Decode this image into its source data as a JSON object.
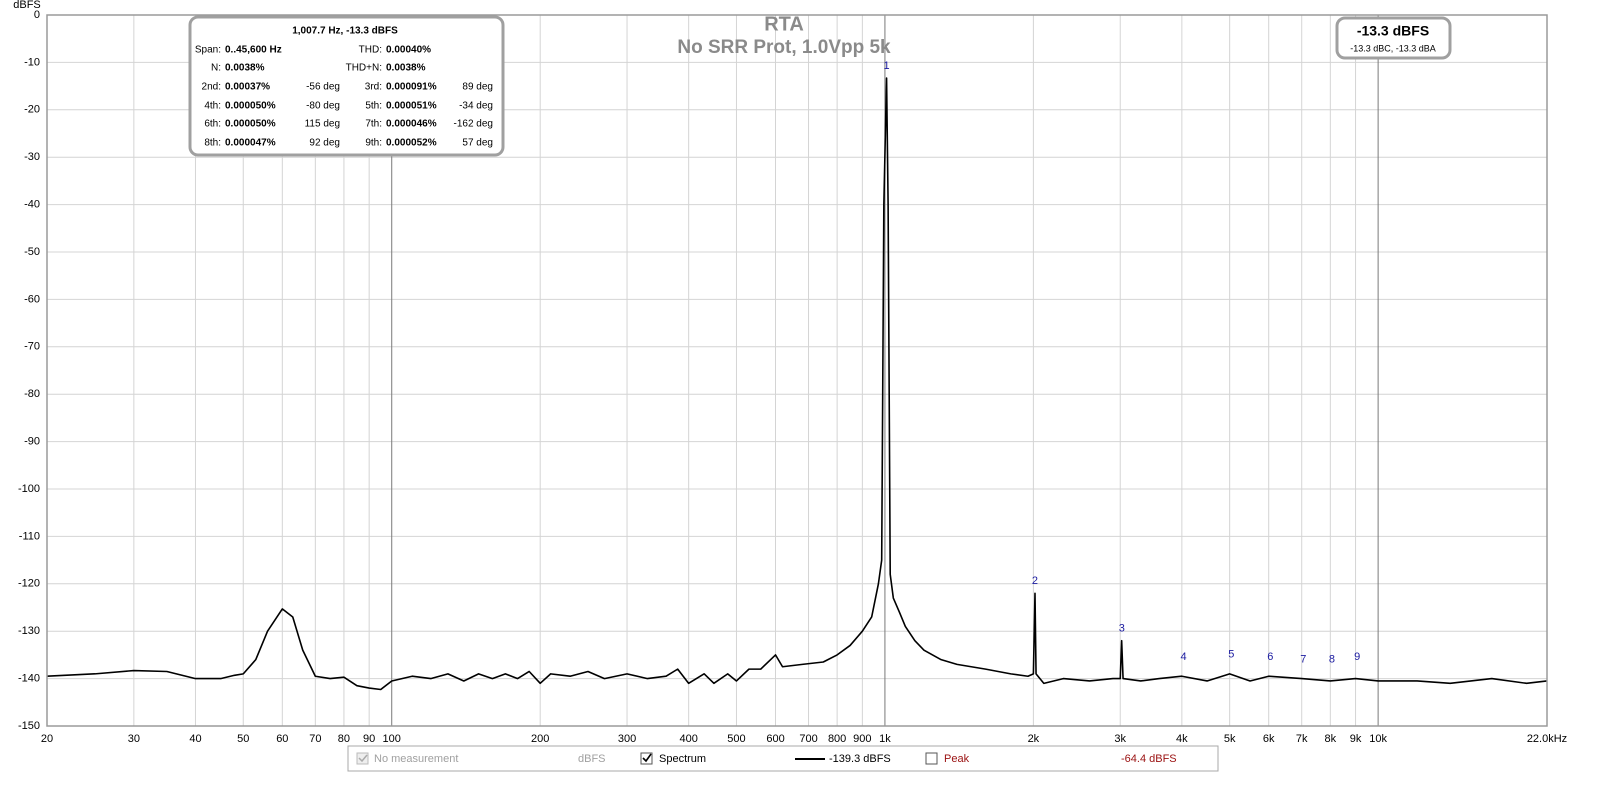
{
  "chart_data": {
    "type": "line",
    "title": "RTA",
    "subtitle": "No SRR Prot, 1.0Vpp 5k",
    "y_label": "dBFS",
    "log_x": true,
    "grid": true,
    "xlim": [
      20,
      22000
    ],
    "ylim": [
      -150,
      0
    ],
    "yticks": [
      0,
      -10,
      -20,
      -30,
      -40,
      -50,
      -60,
      -70,
      -80,
      -90,
      -100,
      -110,
      -120,
      -130,
      -140,
      -150
    ],
    "xticks": [
      20,
      30,
      40,
      50,
      60,
      70,
      80,
      90,
      100,
      200,
      300,
      400,
      500,
      600,
      700,
      800,
      900,
      {
        "value": 1000,
        "label": "1k"
      },
      {
        "value": 2000,
        "label": "2k"
      },
      {
        "value": 3000,
        "label": "3k"
      },
      {
        "value": 4000,
        "label": "4k"
      },
      {
        "value": 5000,
        "label": "5k"
      },
      {
        "value": 6000,
        "label": "6k"
      },
      {
        "value": 7000,
        "label": "7k"
      },
      {
        "value": 8000,
        "label": "8k"
      },
      {
        "value": 9000,
        "label": "9k"
      },
      {
        "value": 10000,
        "label": "10k"
      },
      {
        "value": 22000,
        "label": "22.0kHz"
      }
    ],
    "series": [
      {
        "name": "Spectrum",
        "color": "#000000",
        "legend_value": "-139.3 dBFS",
        "x": [
          20,
          25,
          30,
          35,
          40,
          45,
          48,
          50,
          53,
          56,
          60,
          63,
          66,
          70,
          75,
          80,
          85,
          90,
          95,
          100,
          110,
          120,
          130,
          140,
          150,
          160,
          170,
          180,
          190,
          200,
          210,
          230,
          250,
          270,
          300,
          330,
          360,
          380,
          400,
          430,
          450,
          480,
          500,
          530,
          560,
          600,
          620,
          680,
          750,
          800,
          850,
          900,
          940,
          970,
          985,
          995,
          1007.7,
          1015,
          1025,
          1040,
          1070,
          1100,
          1150,
          1200,
          1300,
          1400,
          1600,
          1800,
          1950,
          2000,
          2015,
          2025,
          2100,
          2300,
          2600,
          2900,
          3000,
          3020,
          3040,
          3300,
          3600,
          4000,
          4500,
          5000,
          5500,
          6000,
          7000,
          8000,
          9000,
          10000,
          12000,
          14000,
          17000,
          20000,
          22000
        ],
        "values": [
          -139.5,
          -139,
          -138.3,
          -138.5,
          -140,
          -140,
          -139.3,
          -139,
          -136,
          -130,
          -125.3,
          -127,
          -134,
          -139.5,
          -140,
          -139.7,
          -141.5,
          -142,
          -142.3,
          -140.5,
          -139.5,
          -140,
          -139,
          -140.5,
          -139,
          -140,
          -139,
          -140,
          -138.5,
          -141,
          -139,
          -139.5,
          -138.5,
          -140,
          -139,
          -140,
          -139.5,
          -138,
          -141,
          -139,
          -141,
          -139,
          -140.5,
          -138,
          -138,
          -135,
          -137.5,
          -137,
          -136.5,
          -135,
          -133,
          -130,
          -127,
          -120,
          -115,
          -40,
          -13.3,
          -40,
          -118,
          -123,
          -126,
          -129,
          -132,
          -134,
          -136,
          -137,
          -138,
          -139,
          -139.5,
          -139,
          -122,
          -139,
          -141,
          -140,
          -140.5,
          -140,
          -140,
          -132,
          -140,
          -140.5,
          -140,
          -139.5,
          -140.5,
          -139,
          -140.5,
          -139.5,
          -140,
          -140.5,
          -140,
          -140.5,
          -140.5,
          -141,
          -140,
          -141,
          -140.5
        ]
      }
    ],
    "markers": [
      {
        "label": "1",
        "x": 1007.7,
        "y": -13.3
      },
      {
        "label": "2",
        "x": 2015,
        "y": -122
      },
      {
        "label": "3",
        "x": 3023,
        "y": -132
      },
      {
        "label": "4",
        "x": 4031,
        "y": -138
      },
      {
        "label": "5",
        "x": 5039,
        "y": -137.5
      },
      {
        "label": "6",
        "x": 6046,
        "y": -138
      },
      {
        "label": "7",
        "x": 7054,
        "y": -138.5
      },
      {
        "label": "8",
        "x": 8062,
        "y": -138.5
      },
      {
        "label": "9",
        "x": 9069,
        "y": -138
      }
    ],
    "info_box": {
      "title": "1,007.7 Hz, -13.3 dBFS",
      "rows": [
        [
          "Span:",
          "0..45,600 Hz",
          "THD:",
          "0.00040%"
        ],
        [
          "N:",
          "0.0038%",
          "THD+N:",
          "0.0038%"
        ],
        [
          "2nd:",
          "0.00037%",
          "-56 deg",
          "3rd:",
          "0.000091%",
          "89 deg"
        ],
        [
          "4th:",
          "0.000050%",
          "-80 deg",
          "5th:",
          "0.000051%",
          "-34 deg"
        ],
        [
          "6th:",
          "0.000050%",
          "115 deg",
          "7th:",
          "0.000046%",
          "-162 deg"
        ],
        [
          "8th:",
          "0.000047%",
          "92 deg",
          "9th:",
          "0.000052%",
          "57 deg"
        ]
      ]
    },
    "level_box": {
      "main": "-13.3 dBFS",
      "sub": "-13.3 dBC, -13.3 dBA"
    },
    "legend_bar": {
      "no_measurement": "No measurement",
      "no_measurement_unit": "dBFS",
      "peak": "Peak",
      "peak_level": "-64.4 dBFS"
    }
  }
}
